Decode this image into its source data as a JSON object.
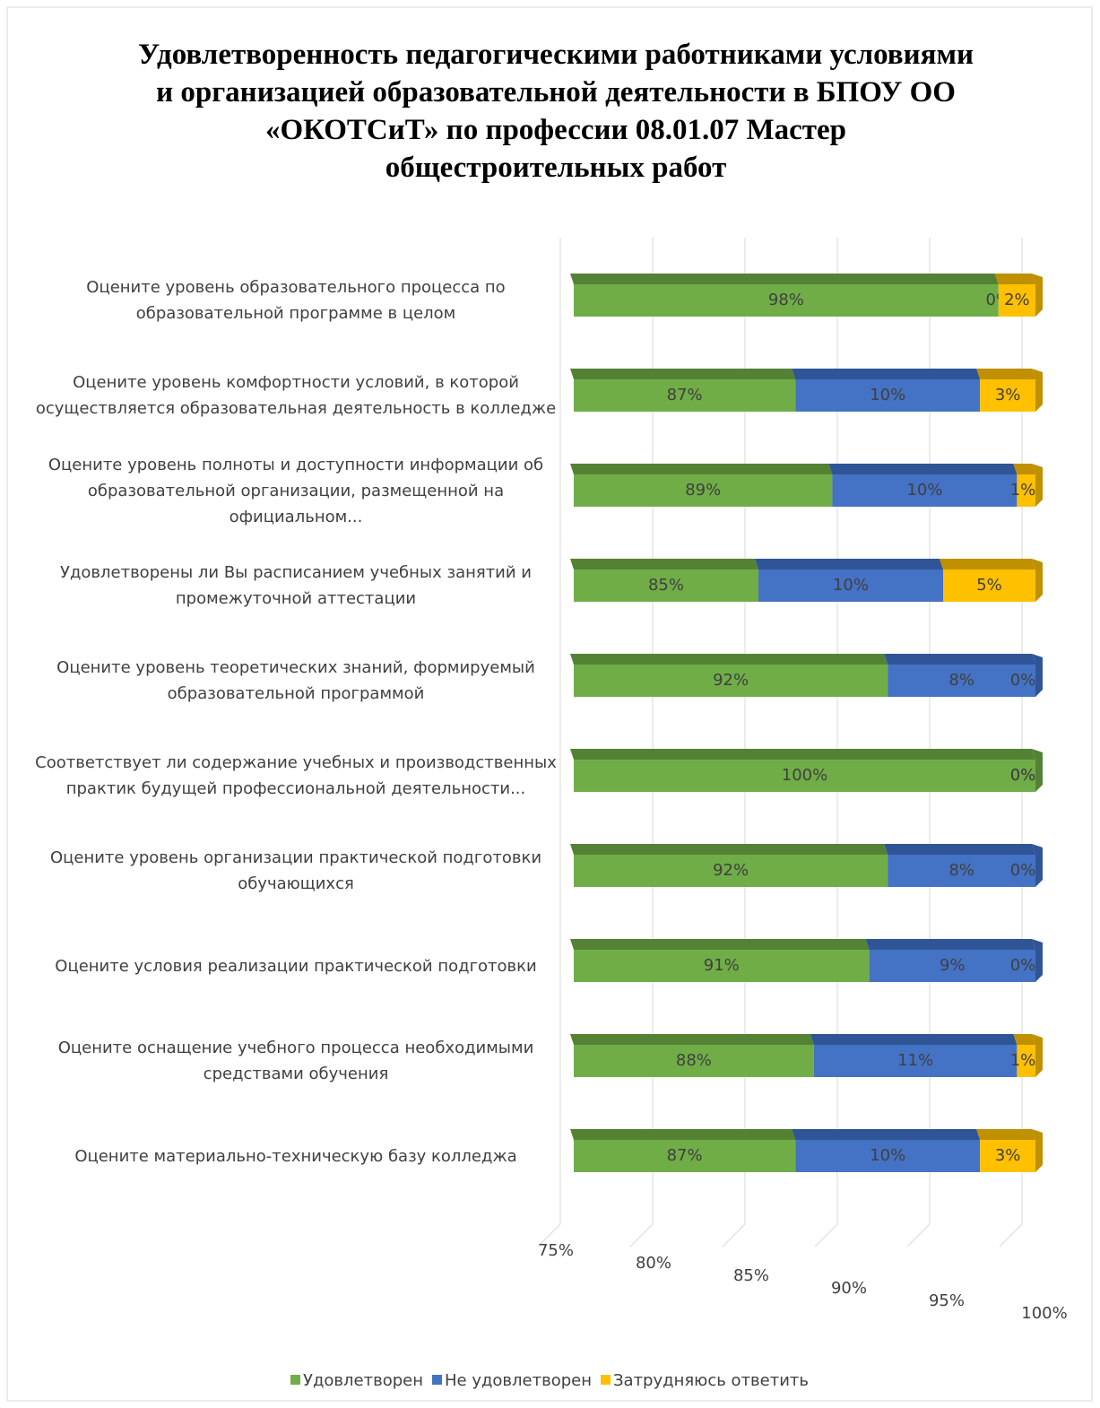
{
  "chart_data": {
    "type": "stacked-bar-3d-horizontal",
    "title": "Удовлетворенность педагогическими работниками условиями и организацией образовательной деятельности в БПОУ ОО «ОКОТСиТ» по профессии 08.01.07 Мастер общестроительных работ",
    "categories": [
      "Оцените уровень образовательного процесса по образовательной программе в целом",
      "Оцените уровень комфортности условий, в которой осуществляется образовательная деятельность в колледже",
      "Оцените уровень полноты и доступности информации об образовательной организации, размещенной  на официальном...",
      "Удовлетворены ли Вы расписанием учебных занятий и промежуточной аттестации",
      "Оцените уровень теоретических знаний, формируемый образовательной программой",
      "Соответствует ли содержание учебных и производственных практик будущей профессиональной деятельности...",
      "Оцените уровень организации практической подготовки обучающихся",
      "Оцените условия реализации практической подготовки",
      "Оцените оснащение учебного процесса необходимыми средствами обучения",
      "Оцените материально-техническую базу колледжа"
    ],
    "series": [
      {
        "name": "Удовлетворен",
        "color": "#70ad47",
        "values": [
          98,
          87,
          89,
          85,
          92,
          100,
          92,
          91,
          88,
          87
        ],
        "value_labels": [
          "98%",
          "87%",
          "89%",
          "85%",
          "92%",
          "100%",
          "92%",
          "91%",
          "88%",
          "87%"
        ]
      },
      {
        "name": "Не удовлетворен",
        "color": "#4472c4",
        "values": [
          0,
          10,
          10,
          10,
          8,
          0,
          8,
          9,
          11,
          10
        ],
        "value_labels": [
          "0%",
          "10%",
          "10%",
          "10%",
          "8%",
          "0%",
          "8%",
          "9%",
          "11%",
          "10%"
        ]
      },
      {
        "name": "Затрудняюсь ответить",
        "color": "#ffc000",
        "values": [
          2,
          3,
          1,
          5,
          0,
          0,
          0,
          0,
          1,
          3
        ],
        "value_labels": [
          "2%",
          "3%",
          "1%",
          "5%",
          "0%",
          "0%",
          "0%",
          "0%",
          "1%",
          "3%"
        ]
      }
    ],
    "xlim": [
      75,
      100
    ],
    "xticks": [
      {
        "value": 75,
        "label": "75%"
      },
      {
        "value": 80,
        "label": "80%"
      },
      {
        "value": 85,
        "label": "85%"
      },
      {
        "value": 90,
        "label": "90%"
      },
      {
        "value": 95,
        "label": "95%"
      },
      {
        "value": 100,
        "label": "100%"
      }
    ],
    "grid": true,
    "legend": "bottom"
  }
}
